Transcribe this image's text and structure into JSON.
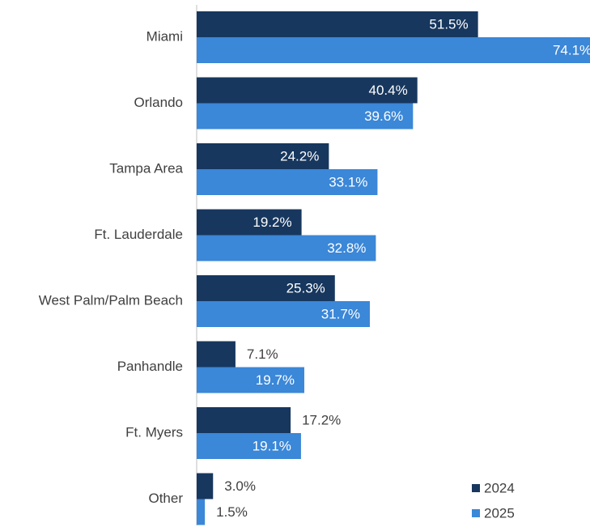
{
  "chart_data": {
    "type": "bar",
    "orientation": "horizontal",
    "categories": [
      "Miami",
      "Orlando",
      "Tampa Area",
      "Ft. Lauderdale",
      "West Palm/Palm Beach",
      "Panhandle",
      "Ft. Myers",
      "Other"
    ],
    "series": [
      {
        "name": "2024",
        "color": "#17375e",
        "values": [
          51.5,
          40.4,
          24.2,
          19.2,
          25.3,
          7.1,
          17.2,
          3.0
        ],
        "value_labels": [
          "51.5%",
          "40.4%",
          "24.2%",
          "19.2%",
          "25.3%",
          "7.1%",
          "17.2%",
          "3.0%"
        ]
      },
      {
        "name": "2025",
        "color": "#3b87d8",
        "values": [
          74.1,
          39.6,
          33.1,
          32.8,
          31.7,
          19.7,
          19.1,
          1.5
        ],
        "value_labels": [
          "74.1%",
          "39.6%",
          "33.1%",
          "32.8%",
          "31.7%",
          "19.7%",
          "19.1%",
          "1.5%"
        ]
      }
    ],
    "legend": "bottom-right"
  }
}
